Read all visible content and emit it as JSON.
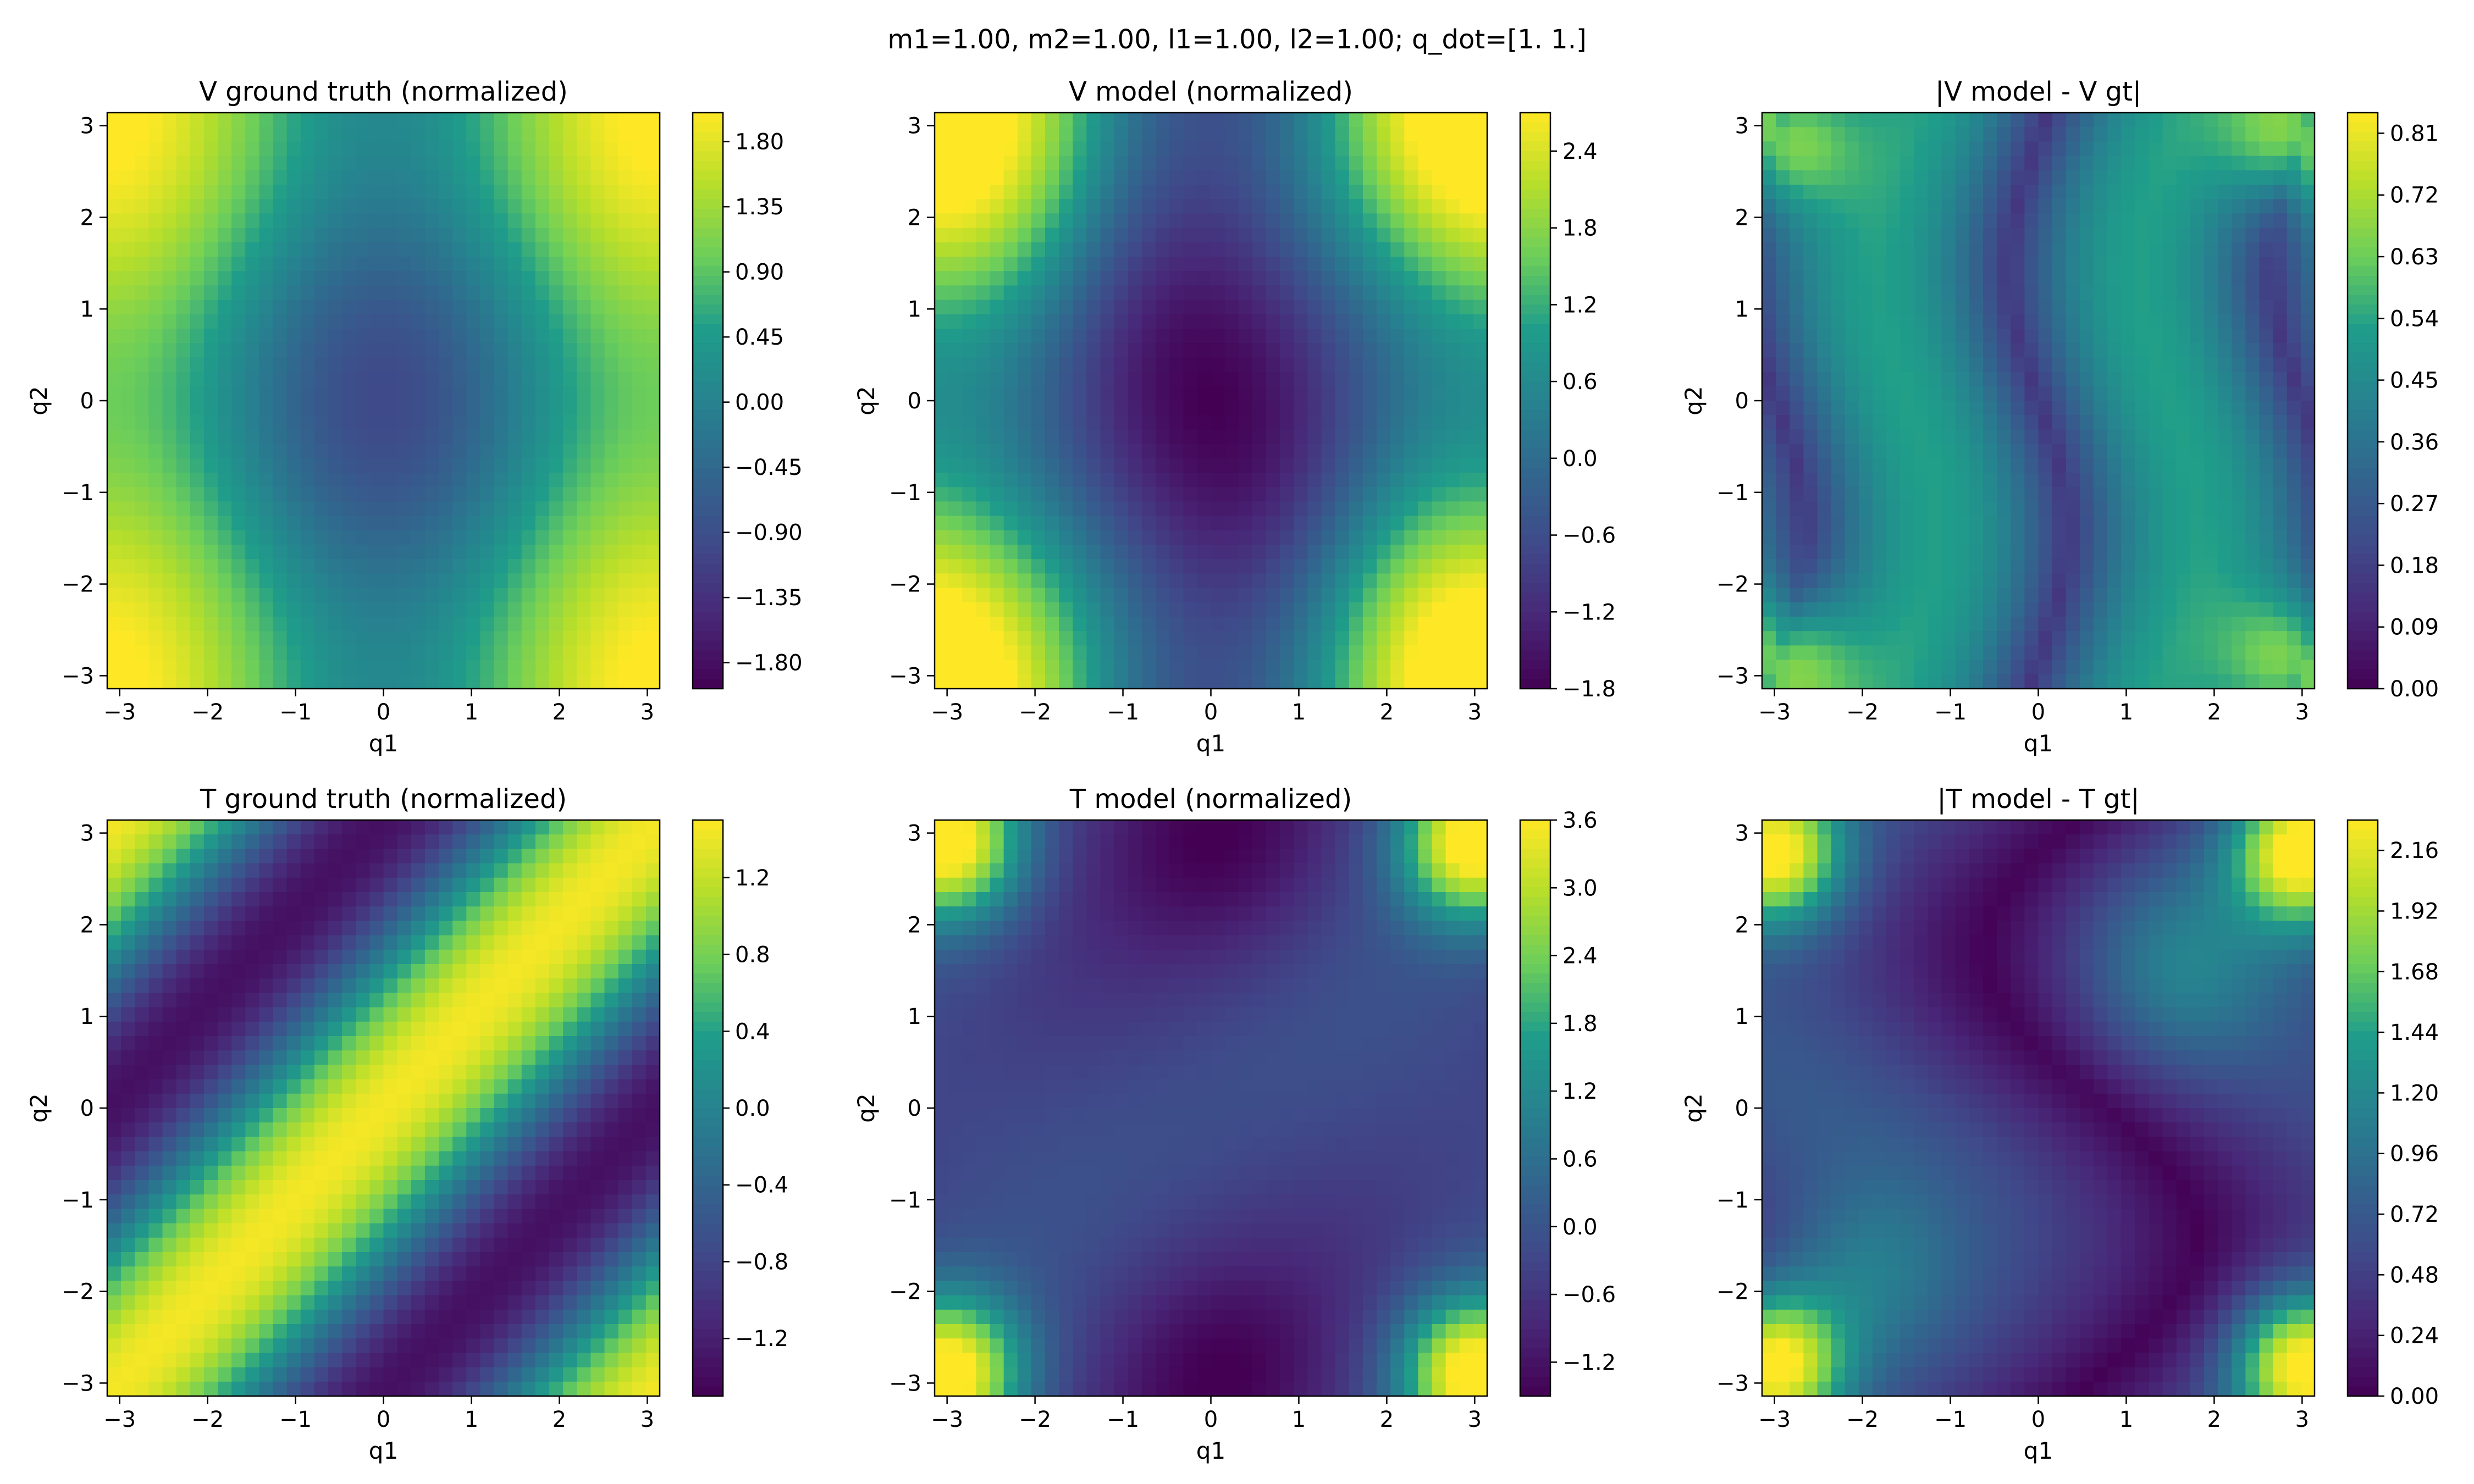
{
  "figure": {
    "suptitle": "m1=1.00, m2=1.00, l1=1.00, l2=1.00; q_dot=[1. 1.]"
  },
  "chart_data": [
    {
      "type": "heatmap",
      "title": "V ground truth (normalized)",
      "xlabel": "q1",
      "ylabel": "q2",
      "xlim": [
        -3.1416,
        3.1416
      ],
      "ylim": [
        -3.1416,
        3.1416
      ],
      "xticks": [
        -3,
        -2,
        -1,
        0,
        1,
        2,
        3
      ],
      "yticks": [
        -3,
        -2,
        -1,
        0,
        1,
        2,
        3
      ],
      "field": "v_gt",
      "colorbar": {
        "vmin": -1.98,
        "vmax": 2.0,
        "ticks": [
          1.8,
          1.35,
          0.9,
          0.45,
          0.0,
          -0.45,
          -0.9,
          -1.35,
          -1.8
        ],
        "tick_labels": [
          "1.80",
          "1.35",
          "0.90",
          "0.45",
          "0.00",
          "−0.45",
          "−0.90",
          "−1.35",
          "−1.80"
        ]
      }
    },
    {
      "type": "heatmap",
      "title": "V model (normalized)",
      "xlabel": "q1",
      "ylabel": "q2",
      "xlim": [
        -3.1416,
        3.1416
      ],
      "ylim": [
        -3.1416,
        3.1416
      ],
      "xticks": [
        -3,
        -2,
        -1,
        0,
        1,
        2,
        3
      ],
      "yticks": [
        -3,
        -2,
        -1,
        0,
        1,
        2,
        3
      ],
      "field": "v_model",
      "colorbar": {
        "vmin": -1.8,
        "vmax": 2.7,
        "ticks": [
          2.4,
          1.8,
          1.2,
          0.6,
          0.0,
          -0.6,
          -1.2,
          -1.8
        ],
        "tick_labels": [
          "2.4",
          "1.8",
          "1.2",
          "0.6",
          "0.0",
          "−0.6",
          "−1.2",
          "−1.8"
        ]
      }
    },
    {
      "type": "heatmap",
      "title": "|V model - V gt|",
      "xlabel": "q1",
      "ylabel": "q2",
      "xlim": [
        -3.1416,
        3.1416
      ],
      "ylim": [
        -3.1416,
        3.1416
      ],
      "xticks": [
        -3,
        -2,
        -1,
        0,
        1,
        2,
        3
      ],
      "yticks": [
        -3,
        -2,
        -1,
        0,
        1,
        2,
        3
      ],
      "field": "v_err",
      "colorbar": {
        "vmin": 0.0,
        "vmax": 0.84,
        "ticks": [
          0.81,
          0.72,
          0.63,
          0.54,
          0.45,
          0.36,
          0.27,
          0.18,
          0.09,
          0.0
        ],
        "tick_labels": [
          "0.81",
          "0.72",
          "0.63",
          "0.54",
          "0.45",
          "0.36",
          "0.27",
          "0.18",
          "0.09",
          "0.00"
        ]
      }
    },
    {
      "type": "heatmap",
      "title": "T ground truth (normalized)",
      "xlabel": "q1",
      "ylabel": "q2",
      "xlim": [
        -3.1416,
        3.1416
      ],
      "ylim": [
        -3.1416,
        3.1416
      ],
      "xticks": [
        -3,
        -2,
        -1,
        0,
        1,
        2,
        3
      ],
      "yticks": [
        -3,
        -2,
        -1,
        0,
        1,
        2,
        3
      ],
      "field": "t_gt",
      "colorbar": {
        "vmin": -1.5,
        "vmax": 1.5,
        "ticks": [
          1.2,
          0.8,
          0.4,
          0.0,
          -0.4,
          -0.8,
          -1.2
        ],
        "tick_labels": [
          "1.2",
          "0.8",
          "0.4",
          "0.0",
          "−0.4",
          "−0.8",
          "−1.2"
        ]
      }
    },
    {
      "type": "heatmap",
      "title": "T model (normalized)",
      "xlabel": "q1",
      "ylabel": "q2",
      "xlim": [
        -3.1416,
        3.1416
      ],
      "ylim": [
        -3.1416,
        3.1416
      ],
      "xticks": [
        -3,
        -2,
        -1,
        0,
        1,
        2,
        3
      ],
      "yticks": [
        -3,
        -2,
        -1,
        0,
        1,
        2,
        3
      ],
      "field": "t_model",
      "colorbar": {
        "vmin": -1.5,
        "vmax": 3.6,
        "ticks": [
          3.6,
          3.0,
          2.4,
          1.8,
          1.2,
          0.6,
          0.0,
          -0.6,
          -1.2
        ],
        "tick_labels": [
          "3.6",
          "3.0",
          "2.4",
          "1.8",
          "1.2",
          "0.6",
          "0.0",
          "−0.6",
          "−1.2"
        ]
      }
    },
    {
      "type": "heatmap",
      "title": "|T model - T gt|",
      "xlabel": "q1",
      "ylabel": "q2",
      "xlim": [
        -3.1416,
        3.1416
      ],
      "ylim": [
        -3.1416,
        3.1416
      ],
      "xticks": [
        -3,
        -2,
        -1,
        0,
        1,
        2,
        3
      ],
      "yticks": [
        -3,
        -2,
        -1,
        0,
        1,
        2,
        3
      ],
      "field": "t_err",
      "colorbar": {
        "vmin": 0.0,
        "vmax": 2.28,
        "ticks": [
          2.16,
          1.92,
          1.68,
          1.44,
          1.2,
          0.96,
          0.72,
          0.48,
          0.24,
          0.0
        ],
        "tick_labels": [
          "2.16",
          "1.92",
          "1.68",
          "1.44",
          "1.20",
          "0.96",
          "0.72",
          "0.48",
          "0.24",
          "0.00"
        ]
      }
    }
  ],
  "colormap": {
    "name": "viridis",
    "stops": [
      "#440154",
      "#482777",
      "#3f4a8a",
      "#31678e",
      "#26838f",
      "#1f9d8a",
      "#6cce5a",
      "#b6de2b",
      "#fee825"
    ]
  }
}
